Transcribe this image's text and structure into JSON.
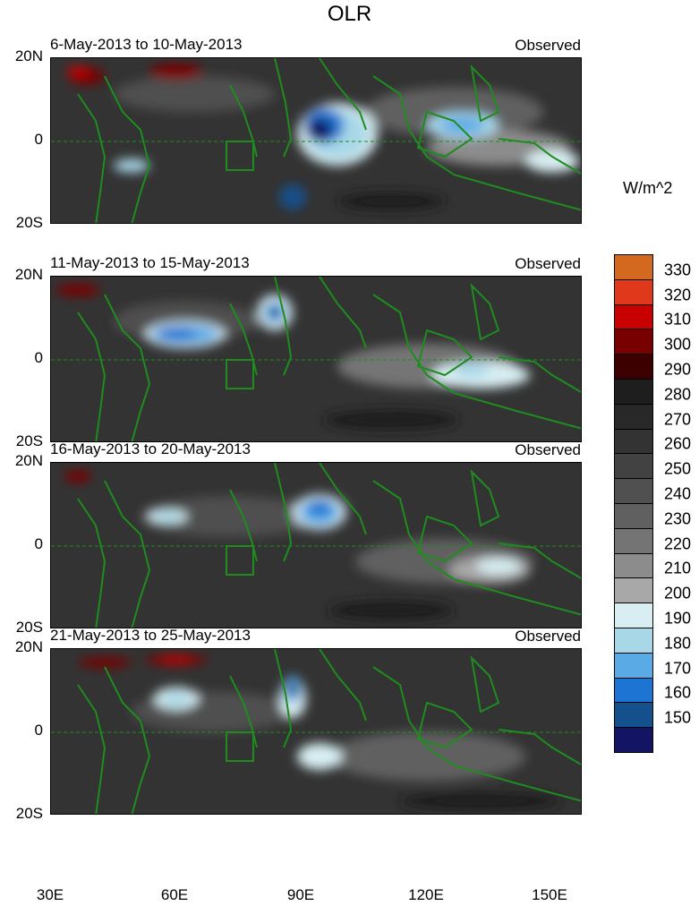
{
  "title": "OLR",
  "panels": [
    {
      "period": "6-May-2013 to 10-May-2013",
      "tag": "Observed"
    },
    {
      "period": "11-May-2013 to 15-May-2013",
      "tag": "Observed"
    },
    {
      "period": "16-May-2013 to 20-May-2013",
      "tag": "Observed"
    },
    {
      "period": "21-May-2013 to 25-May-2013",
      "tag": "Observed"
    }
  ],
  "y_ticks": [
    "20N",
    "0",
    "20S"
  ],
  "x_ticks": [
    "30E",
    "60E",
    "90E",
    "120E",
    "150E"
  ],
  "colorbar": {
    "unit": "W/m^2",
    "levels": [
      "330",
      "320",
      "310",
      "300",
      "290",
      "280",
      "270",
      "260",
      "250",
      "240",
      "230",
      "220",
      "210",
      "200",
      "190",
      "180",
      "170",
      "160",
      "150"
    ],
    "colors": [
      "#d2691e",
      "#e0381a",
      "#c80000",
      "#780000",
      "#3c0000",
      "#1e1e1e",
      "#282828",
      "#333333",
      "#424242",
      "#505050",
      "#606060",
      "#747474",
      "#8c8c8c",
      "#a8a8a8",
      "#d8eef2",
      "#a8d8e8",
      "#5aaae6",
      "#1e74d2",
      "#14508c",
      "#141464"
    ]
  }
}
